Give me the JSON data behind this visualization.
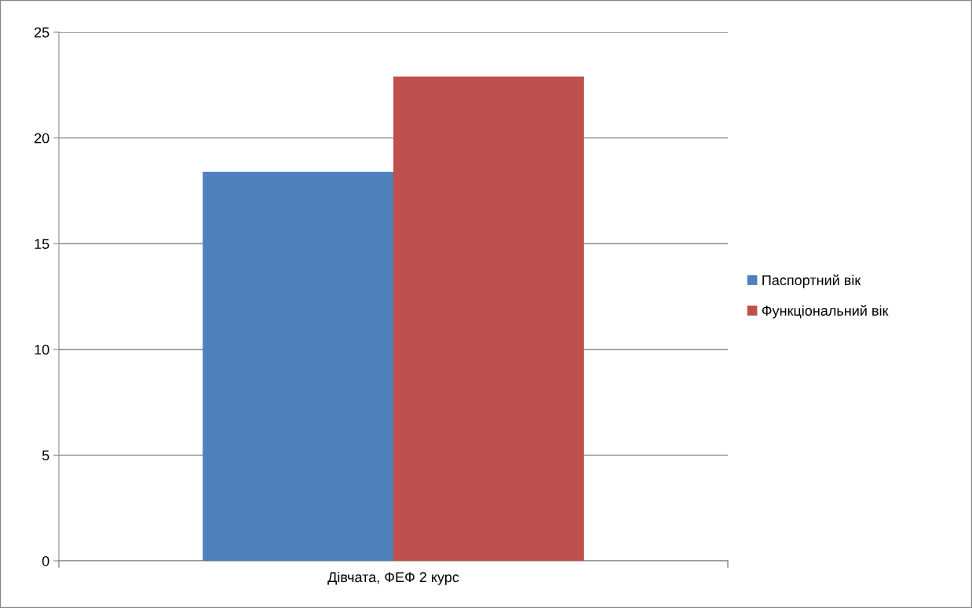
{
  "chart_data": {
    "type": "bar",
    "categories": [
      "Дівчата, ФЕФ 2 курс"
    ],
    "series": [
      {
        "name": "Паспортний вік",
        "color": "#4f81bd",
        "values": [
          18.4
        ]
      },
      {
        "name": "Функціональний вік",
        "color": "#c0504d",
        "values": [
          22.9
        ]
      }
    ],
    "ylim": [
      0,
      25
    ],
    "yticks": [
      0,
      5,
      10,
      15,
      20,
      25
    ],
    "grid": "y",
    "legend": "right"
  }
}
